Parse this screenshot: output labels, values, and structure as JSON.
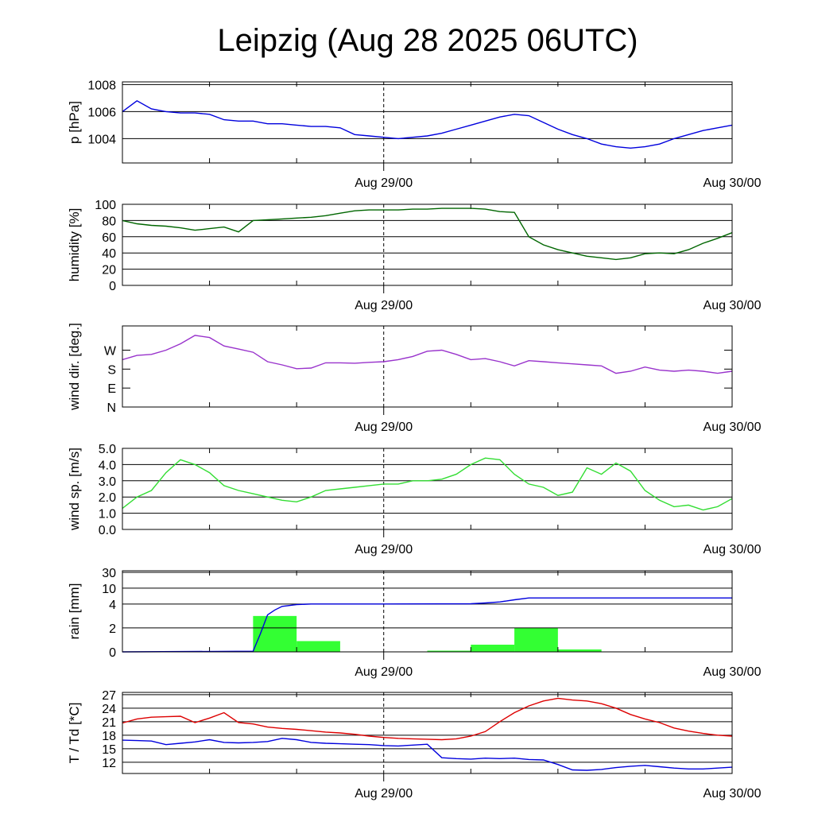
{
  "title": "Leipzig (Aug 28 2025 06UTC)",
  "x_tick_labels": [
    "Aug 29/00",
    "Aug 30/00"
  ],
  "chart_data": [
    {
      "id": "pressure",
      "type": "line",
      "ylabel": "p [hPa]",
      "ylim": [
        1002.2,
        1008.2
      ],
      "yticks": [
        1004,
        1006,
        1008
      ],
      "ytick_labels": [
        "1004",
        "1006",
        "1008"
      ],
      "grid": true,
      "color": "#0000dd",
      "series": [
        {
          "name": "pressure",
          "hours": [
            0,
            1,
            2,
            3,
            4,
            5,
            6,
            7,
            8,
            9,
            10,
            11,
            12,
            13,
            14,
            15,
            16,
            17,
            18,
            19,
            20,
            21,
            22,
            23,
            24,
            25,
            26,
            27,
            28,
            29,
            30,
            31,
            32,
            33,
            34,
            35,
            36,
            37,
            38,
            39,
            40,
            41,
            42
          ],
          "values": [
            1006.0,
            1006.8,
            1006.2,
            1006.0,
            1005.9,
            1005.9,
            1005.8,
            1005.4,
            1005.3,
            1005.3,
            1005.1,
            1005.1,
            1005.0,
            1004.9,
            1004.9,
            1004.8,
            1004.3,
            1004.2,
            1004.1,
            1004.0,
            1004.1,
            1004.2,
            1004.4,
            1004.7,
            1005.0,
            1005.3,
            1005.6,
            1005.8,
            1005.7,
            1005.2,
            1004.7,
            1004.3,
            1004.0,
            1003.6,
            1003.4,
            1003.3,
            1003.4,
            1003.6,
            1004.0,
            1004.3,
            1004.6,
            1004.8,
            1005.0
          ]
        }
      ]
    },
    {
      "id": "humidity",
      "type": "line",
      "ylabel": "humidity [%]",
      "ylim": [
        0,
        100
      ],
      "yticks": [
        0,
        20,
        40,
        60,
        80,
        100
      ],
      "ytick_labels": [
        "0",
        "20",
        "40",
        "60",
        "80",
        "100"
      ],
      "grid": true,
      "color": "#006600",
      "series": [
        {
          "name": "humidity",
          "hours": [
            0,
            1,
            2,
            3,
            4,
            5,
            6,
            7,
            8,
            9,
            10,
            11,
            12,
            13,
            14,
            15,
            16,
            17,
            18,
            19,
            20,
            21,
            22,
            23,
            24,
            25,
            26,
            27,
            28,
            29,
            30,
            31,
            32,
            33,
            34,
            35,
            36,
            37,
            38,
            39,
            40,
            41,
            42
          ],
          "values": [
            80,
            76,
            74,
            73,
            71,
            68,
            70,
            72,
            66,
            80,
            81,
            82,
            83,
            84,
            86,
            89,
            92,
            93,
            93,
            93,
            94,
            94,
            95,
            95,
            95,
            94,
            91,
            90,
            60,
            50,
            44,
            40,
            36,
            34,
            32,
            34,
            39,
            40,
            39,
            44,
            52,
            58,
            65
          ]
        }
      ]
    },
    {
      "id": "wind_direction",
      "type": "line",
      "ylabel": "wind dir. [deg.]",
      "ylim": [
        0,
        385
      ],
      "yticks": [
        0,
        90,
        180,
        270
      ],
      "ytick_labels": [
        "N",
        "E",
        "S",
        "W"
      ],
      "grid": false,
      "color": "#9933cc",
      "series": [
        {
          "name": "wind direction",
          "hours": [
            0,
            1,
            2,
            3,
            4,
            5,
            6,
            7,
            8,
            9,
            10,
            11,
            12,
            13,
            14,
            15,
            16,
            17,
            18,
            19,
            20,
            21,
            22,
            23,
            24,
            25,
            26,
            27,
            28,
            29,
            30,
            31,
            32,
            33,
            34,
            35,
            36,
            37,
            38,
            39,
            40,
            41,
            42
          ],
          "values": [
            225,
            245,
            250,
            270,
            300,
            340,
            330,
            290,
            275,
            260,
            215,
            200,
            182,
            185,
            210,
            210,
            208,
            212,
            215,
            225,
            240,
            265,
            270,
            250,
            225,
            230,
            215,
            195,
            220,
            215,
            210,
            205,
            200,
            195,
            160,
            170,
            190,
            175,
            170,
            175,
            170,
            160,
            170
          ]
        }
      ]
    },
    {
      "id": "wind_speed",
      "type": "line",
      "ylabel": "wind sp. [m/s]",
      "ylim": [
        0,
        5
      ],
      "yticks": [
        0,
        1,
        2,
        3,
        4,
        5
      ],
      "ytick_labels": [
        "0.0",
        "1.0",
        "2.0",
        "3.0",
        "4.0",
        "5.0"
      ],
      "grid": true,
      "color": "#33dd33",
      "series": [
        {
          "name": "wind speed",
          "hours": [
            0,
            1,
            2,
            3,
            4,
            5,
            6,
            7,
            8,
            9,
            10,
            11,
            12,
            13,
            14,
            15,
            16,
            17,
            18,
            19,
            20,
            21,
            22,
            23,
            24,
            25,
            26,
            27,
            28,
            29,
            30,
            31,
            32,
            33,
            34,
            35,
            36,
            37,
            38,
            39,
            40,
            41,
            42
          ],
          "values": [
            1.3,
            2.0,
            2.4,
            3.5,
            4.3,
            4.0,
            3.5,
            2.7,
            2.4,
            2.2,
            2.0,
            1.8,
            1.7,
            2.0,
            2.4,
            2.5,
            2.6,
            2.7,
            2.8,
            2.8,
            3.0,
            3.0,
            3.1,
            3.4,
            4.0,
            4.4,
            4.3,
            3.4,
            2.8,
            2.6,
            2.1,
            2.3,
            3.8,
            3.4,
            4.1,
            3.6,
            2.4,
            1.8,
            1.4,
            1.5,
            1.2,
            1.4,
            1.9
          ]
        }
      ]
    },
    {
      "id": "rain",
      "type": "bar+line",
      "ylabel": "rain [mm]",
      "yticks": [
        0,
        2,
        4,
        10,
        30
      ],
      "ytick_labels": [
        "0",
        "2",
        "4",
        "10",
        "30"
      ],
      "grid": true,
      "bar_color": "#33ff33",
      "line_color": "#0000dd",
      "bars": [
        {
          "start_hour": 0,
          "end_hour": 3,
          "value": 0
        },
        {
          "start_hour": 3,
          "end_hour": 6,
          "value": 0
        },
        {
          "start_hour": 6,
          "end_hour": 9,
          "value": 0
        },
        {
          "start_hour": 9,
          "end_hour": 12,
          "value": 3.0
        },
        {
          "start_hour": 12,
          "end_hour": 15,
          "value": 0.9
        },
        {
          "start_hour": 15,
          "end_hour": 18,
          "value": 0
        },
        {
          "start_hour": 18,
          "end_hour": 21,
          "value": 0
        },
        {
          "start_hour": 21,
          "end_hour": 24,
          "value": 0.1
        },
        {
          "start_hour": 24,
          "end_hour": 27,
          "value": 0.6
        },
        {
          "start_hour": 27,
          "end_hour": 30,
          "value": 2.0
        },
        {
          "start_hour": 30,
          "end_hour": 33,
          "value": 0.2
        },
        {
          "start_hour": 33,
          "end_hour": 36,
          "value": 0
        },
        {
          "start_hour": 36,
          "end_hour": 39,
          "value": 0
        },
        {
          "start_hour": 39,
          "end_hour": 42,
          "value": 0
        }
      ],
      "cumulative": {
        "hours": [
          0,
          9,
          9.5,
          10,
          10.5,
          11,
          12,
          13,
          18,
          24,
          25,
          26,
          27,
          28,
          42
        ],
        "values": [
          0,
          0.05,
          1.5,
          3.1,
          3.5,
          3.8,
          3.95,
          4.0,
          4.0,
          4.1,
          4.4,
          4.8,
          5.6,
          6.3,
          6.3
        ]
      }
    },
    {
      "id": "temperature",
      "type": "line",
      "ylabel": "T / Td [*C]",
      "ylim": [
        9.5,
        27.5
      ],
      "yticks": [
        12,
        15,
        18,
        21,
        24,
        27
      ],
      "ytick_labels": [
        "12",
        "15",
        "18",
        "21",
        "24",
        "27"
      ],
      "grid": true,
      "series": [
        {
          "name": "T",
          "color": "#dd0000",
          "hours": [
            0,
            1,
            2,
            3,
            4,
            5,
            6,
            7,
            8,
            9,
            10,
            11,
            12,
            13,
            14,
            15,
            16,
            17,
            18,
            19,
            20,
            21,
            22,
            23,
            24,
            25,
            26,
            27,
            28,
            29,
            30,
            31,
            32,
            33,
            34,
            35,
            36,
            37,
            38,
            39,
            40,
            41,
            42
          ],
          "values": [
            20.7,
            21.6,
            22.0,
            22.1,
            22.2,
            20.8,
            21.8,
            23.0,
            20.8,
            20.5,
            19.8,
            19.5,
            19.3,
            19.0,
            18.7,
            18.5,
            18.2,
            17.8,
            17.5,
            17.3,
            17.2,
            17.1,
            17.0,
            17.2,
            17.8,
            18.8,
            21.0,
            23.0,
            24.5,
            25.6,
            26.2,
            25.8,
            25.6,
            25.0,
            24.0,
            22.6,
            21.6,
            20.8,
            19.6,
            18.9,
            18.4,
            18.0,
            17.8
          ]
        },
        {
          "name": "Td",
          "color": "#0000dd",
          "hours": [
            0,
            1,
            2,
            3,
            4,
            5,
            6,
            7,
            8,
            9,
            10,
            11,
            12,
            13,
            14,
            15,
            16,
            17,
            18,
            19,
            20,
            21,
            22,
            23,
            24,
            25,
            26,
            27,
            28,
            29,
            30,
            31,
            32,
            33,
            34,
            35,
            36,
            37,
            38,
            39,
            40,
            41,
            42
          ],
          "values": [
            16.9,
            16.8,
            16.7,
            15.9,
            16.2,
            16.5,
            17.0,
            16.4,
            16.3,
            16.4,
            16.6,
            17.3,
            17.0,
            16.4,
            16.2,
            16.1,
            16.0,
            15.9,
            15.7,
            15.6,
            15.8,
            16.0,
            13.0,
            12.8,
            12.7,
            12.9,
            12.8,
            12.9,
            12.6,
            12.5,
            11.5,
            10.3,
            10.2,
            10.4,
            10.8,
            11.1,
            11.3,
            11.0,
            10.7,
            10.5,
            10.5,
            10.7,
            10.9
          ]
        }
      ]
    }
  ]
}
